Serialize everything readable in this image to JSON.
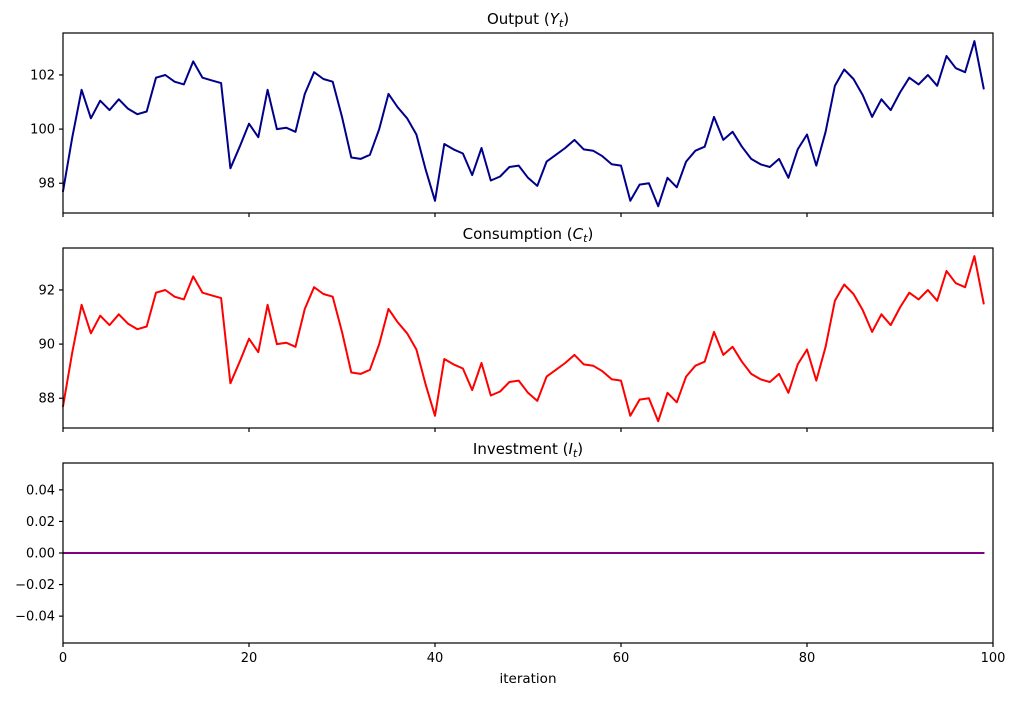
{
  "figure": {
    "background": "#ffffff",
    "x_axis": {
      "label": "iteration",
      "tick_labels": [
        "0",
        "20",
        "40",
        "60",
        "80",
        "100"
      ],
      "tick_values": [
        0,
        20,
        40,
        60,
        80,
        100
      ],
      "range": [
        0,
        100
      ]
    }
  },
  "chart_data": [
    {
      "id": "output",
      "type": "line",
      "title": {
        "text": "Output (Y_t)",
        "prefix": "Output (",
        "variable": "Y",
        "subscript": "t",
        "suffix": ")"
      },
      "line_color": "#00008B",
      "x_start": 0,
      "x_step": 1,
      "values": [
        97.7,
        99.7,
        101.45,
        100.4,
        101.05,
        100.7,
        101.1,
        100.75,
        100.55,
        100.65,
        101.9,
        102.0,
        101.75,
        101.65,
        102.5,
        101.9,
        101.8,
        101.7,
        98.55,
        99.35,
        100.2,
        99.7,
        101.45,
        100.0,
        100.05,
        99.9,
        101.3,
        102.1,
        101.85,
        101.75,
        100.45,
        98.95,
        98.9,
        99.05,
        100.0,
        101.3,
        100.8,
        100.4,
        99.8,
        98.5,
        97.35,
        99.45,
        99.25,
        99.1,
        98.3,
        99.3,
        98.1,
        98.25,
        98.6,
        98.65,
        98.2,
        97.9,
        98.8,
        99.05,
        99.3,
        99.6,
        99.25,
        99.2,
        99.0,
        98.7,
        98.65,
        97.35,
        97.95,
        98.0,
        97.15,
        98.2,
        97.85,
        98.8,
        99.2,
        99.35,
        100.45,
        99.6,
        99.9,
        99.35,
        98.9,
        98.7,
        98.6,
        98.9,
        98.2,
        99.25,
        99.8,
        98.65,
        99.9,
        101.6,
        102.2,
        101.85,
        101.25,
        100.45,
        101.1,
        100.7,
        101.35,
        101.9,
        101.65,
        102.0,
        101.6,
        102.7,
        102.25,
        102.1,
        103.25,
        101.5
      ],
      "y_ticks": {
        "labels": [
          "98",
          "100",
          "102"
        ],
        "values": [
          98,
          100,
          102
        ]
      },
      "ylim": [
        96.9,
        103.55
      ],
      "show_x_tick_labels": false
    },
    {
      "id": "consumption",
      "type": "line",
      "title": {
        "text": "Consumption (C_t)",
        "prefix": "Consumption (",
        "variable": "C",
        "subscript": "t",
        "suffix": ")"
      },
      "line_color": "#FF0000",
      "x_start": 0,
      "x_step": 1,
      "values": [
        87.7,
        89.7,
        91.45,
        90.4,
        91.05,
        90.7,
        91.1,
        90.75,
        90.55,
        90.65,
        91.9,
        92.0,
        91.75,
        91.65,
        92.5,
        91.9,
        91.8,
        91.7,
        88.55,
        89.35,
        90.2,
        89.7,
        91.45,
        90.0,
        90.05,
        89.9,
        91.3,
        92.1,
        91.85,
        91.75,
        90.45,
        88.95,
        88.9,
        89.05,
        90.0,
        91.3,
        90.8,
        90.4,
        89.8,
        88.5,
        87.35,
        89.45,
        89.25,
        89.1,
        88.3,
        89.3,
        88.1,
        88.25,
        88.6,
        88.65,
        88.2,
        87.9,
        88.8,
        89.05,
        89.3,
        89.6,
        89.25,
        89.2,
        89.0,
        88.7,
        88.65,
        87.35,
        87.95,
        88.0,
        87.15,
        88.2,
        87.85,
        88.8,
        89.2,
        89.35,
        90.45,
        89.6,
        89.9,
        89.35,
        88.9,
        88.7,
        88.6,
        88.9,
        88.2,
        89.25,
        89.8,
        88.65,
        89.9,
        91.6,
        92.2,
        91.85,
        91.25,
        90.45,
        91.1,
        90.7,
        91.35,
        91.9,
        91.65,
        92.0,
        91.6,
        92.7,
        92.25,
        92.1,
        93.25,
        91.5
      ],
      "y_ticks": {
        "labels": [
          "88",
          "90",
          "92"
        ],
        "values": [
          88,
          90,
          92
        ]
      },
      "ylim": [
        86.9,
        93.55
      ],
      "show_x_tick_labels": false
    },
    {
      "id": "investment",
      "type": "line",
      "title": {
        "text": "Investment (I_t)",
        "prefix": "Investment (",
        "variable": "I",
        "subscript": "t",
        "suffix": ")"
      },
      "line_color": "#800080",
      "x_start": 0,
      "x_step": 1,
      "values": [
        0,
        0,
        0,
        0,
        0,
        0,
        0,
        0,
        0,
        0,
        0,
        0,
        0,
        0,
        0,
        0,
        0,
        0,
        0,
        0,
        0,
        0,
        0,
        0,
        0,
        0,
        0,
        0,
        0,
        0,
        0,
        0,
        0,
        0,
        0,
        0,
        0,
        0,
        0,
        0,
        0,
        0,
        0,
        0,
        0,
        0,
        0,
        0,
        0,
        0,
        0,
        0,
        0,
        0,
        0,
        0,
        0,
        0,
        0,
        0,
        0,
        0,
        0,
        0,
        0,
        0,
        0,
        0,
        0,
        0,
        0,
        0,
        0,
        0,
        0,
        0,
        0,
        0,
        0,
        0,
        0,
        0,
        0,
        0,
        0,
        0,
        0,
        0,
        0,
        0,
        0,
        0,
        0,
        0,
        0,
        0,
        0,
        0,
        0,
        0
      ],
      "y_ticks": {
        "labels": [
          "0.04",
          "0.02",
          "0.00",
          "−0.02",
          "−0.04"
        ],
        "values": [
          0.04,
          0.02,
          0.0,
          -0.02,
          -0.04
        ]
      },
      "ylim": [
        -0.057,
        0.057
      ],
      "show_x_tick_labels": true
    }
  ]
}
